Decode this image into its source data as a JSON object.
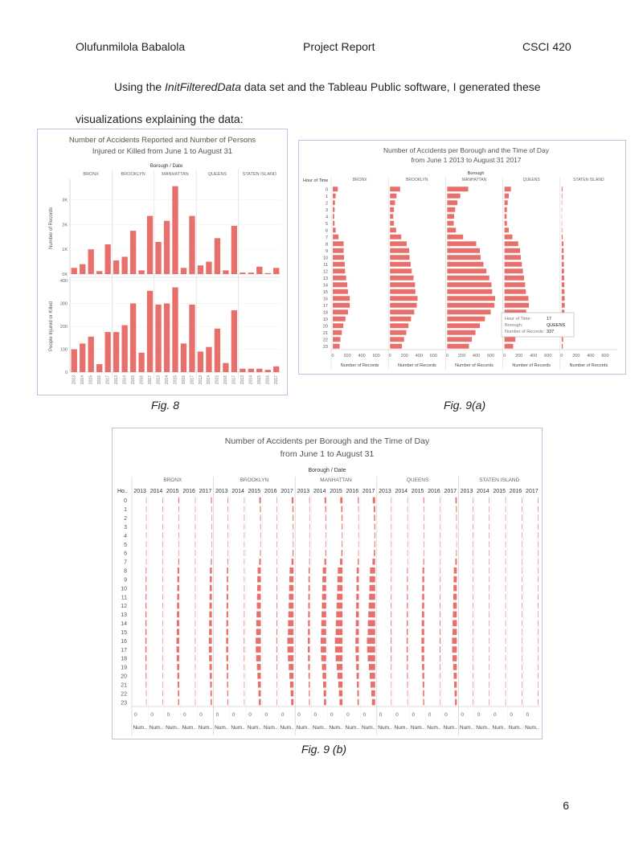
{
  "header": {
    "author": "Olufunmilola Babalola",
    "title": "Project Report",
    "course": "CSCI 420"
  },
  "intro": {
    "line1_pre": "Using the ",
    "line1_em": "InitFilteredData",
    "line1_post": " data set and the Tableau Public software, I generated these",
    "line2": "visualizations explaining the data:"
  },
  "captions": {
    "fig8": "Fig. 8",
    "fig9a": "Fig. 9(a)",
    "fig9b": "Fig. 9 (b)"
  },
  "page_number": "6",
  "colors": {
    "bar": "#e8706c",
    "frame": "#b8c4e0",
    "grid": "#d8d8d8"
  },
  "chart_data": [
    {
      "id": "fig8",
      "type": "bar",
      "title": [
        "Number of Accidents Reported and Number of Persons",
        "Injured or Killed from June 1 to August 31"
      ],
      "column_header": "Borough / Date",
      "boroughs": [
        "BRONX",
        "BROOKLYN",
        "MANHATTAN",
        "QUEENS",
        "STATEN ISLAND"
      ],
      "years": [
        "2013",
        "2014",
        "2015",
        "2016",
        "2017"
      ],
      "panels": [
        {
          "ylabel": "Number of Records",
          "ylim": [
            0,
            3700
          ],
          "ticks": [
            0,
            1000,
            2000,
            3000
          ],
          "tick_labels": [
            "0K",
            "1K",
            "2K",
            "3K"
          ],
          "values": [
            [
              250,
              400,
              1000,
              120,
              1200
            ],
            [
              550,
              700,
              1750,
              150,
              2350
            ],
            [
              1300,
              2150,
              3550,
              250,
              2350
            ],
            [
              350,
              500,
              1450,
              150,
              1950
            ],
            [
              60,
              60,
              300,
              40,
              250
            ]
          ]
        },
        {
          "ylabel": "People Injured or Killed",
          "ylim": [
            0,
            400
          ],
          "ticks": [
            0,
            100,
            200,
            300,
            400
          ],
          "tick_labels": [
            "0",
            "100",
            "200",
            "300",
            "400"
          ],
          "values": [
            [
              100,
              125,
              155,
              35,
              175
            ],
            [
              175,
              205,
              300,
              85,
              355
            ],
            [
              295,
              300,
              370,
              125,
              295
            ],
            [
              90,
              110,
              190,
              40,
              270
            ],
            [
              15,
              15,
              15,
              10,
              25
            ]
          ]
        }
      ]
    },
    {
      "id": "fig9a",
      "type": "bar",
      "orientation": "horizontal",
      "title": [
        "Number of Accidents per Borough and the Time of Day",
        "from June 1 2013 to August 31 2017"
      ],
      "column_header": "Borough",
      "row_header": "Hour of Time",
      "xlabel": "Number of Records",
      "xlim": [
        0,
        700
      ],
      "ticks": [
        0,
        200,
        400,
        600
      ],
      "boroughs": [
        "BRONX",
        "BROOKLYN",
        "MANHATTAN",
        "QUEENS",
        "STATEN ISLAND"
      ],
      "hours": [
        "0",
        "1",
        "2",
        "3",
        "4",
        "5",
        "6",
        "7",
        "8",
        "9",
        "10",
        "11",
        "12",
        "13",
        "14",
        "15",
        "16",
        "17",
        "18",
        "19",
        "20",
        "21",
        "22",
        "23"
      ],
      "values": [
        [
          70,
          40,
          30,
          25,
          20,
          25,
          40,
          80,
          150,
          150,
          155,
          165,
          170,
          185,
          200,
          210,
          235,
          235,
          210,
          175,
          145,
          125,
          105,
          95
        ],
        [
          140,
          90,
          70,
          55,
          45,
          55,
          85,
          155,
          230,
          265,
          270,
          285,
          300,
          325,
          345,
          350,
          380,
          370,
          335,
          290,
          255,
          225,
          195,
          165
        ],
        [
          290,
          180,
          140,
          110,
          95,
          90,
          120,
          220,
          400,
          450,
          460,
          500,
          540,
          580,
          610,
          620,
          660,
          650,
          600,
          520,
          450,
          390,
          340,
          300
        ],
        [
          90,
          60,
          45,
          35,
          30,
          35,
          60,
          110,
          190,
          215,
          225,
          240,
          255,
          270,
          285,
          295,
          330,
          337,
          300,
          250,
          215,
          180,
          150,
          120
        ],
        [
          12,
          8,
          6,
          5,
          4,
          5,
          8,
          14,
          24,
          27,
          29,
          31,
          33,
          35,
          37,
          39,
          42,
          43,
          38,
          33,
          28,
          24,
          20,
          16
        ]
      ],
      "tooltip": {
        "hour_label": "Hour of Time:",
        "hour_value": "17",
        "borough_label": "Borough:",
        "borough_value": "QUEENS",
        "records_label": "Number of Records:",
        "records_value": "337"
      }
    },
    {
      "id": "fig9b",
      "type": "bar",
      "orientation": "horizontal",
      "title": [
        "Number of Accidents per Borough and the Time of Day",
        "from June 1 to August 31"
      ],
      "column_header": "Borough / Date",
      "row_header": "Ho..",
      "xlabel": "Num..",
      "xlim": [
        0,
        190
      ],
      "tick_label": "0",
      "boroughs": [
        "BRONX",
        "BROOKLYN",
        "MANHATTAN",
        "QUEENS",
        "STATEN ISLAND"
      ],
      "years": [
        "2013",
        "2014",
        "2015",
        "2016",
        "2017"
      ],
      "hours": [
        "0",
        "1",
        "2",
        "3",
        "4",
        "5",
        "6",
        "7",
        "8",
        "9",
        "10",
        "11",
        "12",
        "13",
        "14",
        "15",
        "16",
        "17",
        "18",
        "19",
        "20",
        "21",
        "22",
        "23"
      ],
      "hour_profile": [
        0.3,
        0.18,
        0.14,
        0.11,
        0.09,
        0.1,
        0.16,
        0.33,
        0.62,
        0.68,
        0.7,
        0.74,
        0.78,
        0.83,
        0.88,
        0.9,
        1.0,
        0.98,
        0.9,
        0.77,
        0.66,
        0.56,
        0.47,
        0.39
      ],
      "peak_values": [
        [
          18,
          4,
          40,
          8,
          45
        ],
        [
          30,
          10,
          75,
          12,
          90
        ],
        [
          30,
          80,
          110,
          50,
          120
        ],
        [
          12,
          18,
          40,
          12,
          70
        ],
        [
          1,
          1,
          4,
          1,
          4
        ]
      ]
    }
  ]
}
